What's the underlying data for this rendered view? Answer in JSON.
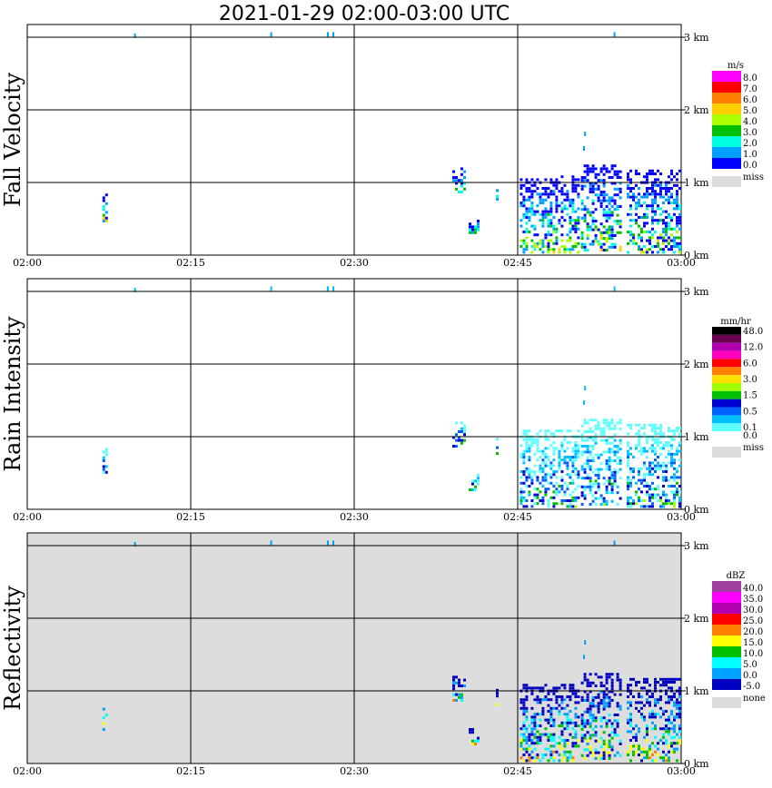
{
  "title": "2021-01-29   02:00-03:00 UTC",
  "chart_data": [
    {
      "type": "heatmap",
      "panel_label": "Fall Velocity",
      "x_tick_labels": [
        "02:00",
        "02:15",
        "02:30",
        "02:45",
        "03:00"
      ],
      "y_tick_labels": [
        "0 km",
        "1 km",
        "2 km",
        "3 km"
      ],
      "ylim_km": [
        0,
        3.2
      ],
      "xlim_min": [
        0,
        60
      ],
      "grid": true,
      "background": "#ffffff",
      "legend": {
        "unit": "m/s",
        "entries": [
          {
            "label": "8.0",
            "color": "#ff00ff"
          },
          {
            "label": "7.0",
            "color": "#ff0000"
          },
          {
            "label": "6.0",
            "color": "#ff8000"
          },
          {
            "label": "5.0",
            "color": "#ffd000"
          },
          {
            "label": "4.0",
            "color": "#aaff00"
          },
          {
            "label": "3.0",
            "color": "#00c000"
          },
          {
            "label": "2.0",
            "color": "#00ffe0"
          },
          {
            "label": "1.0",
            "color": "#00a0ff"
          },
          {
            "label": "0.0",
            "color": "#0000ff"
          }
        ],
        "missing": {
          "label": "miss",
          "color": "#dddddd"
        }
      }
    },
    {
      "type": "heatmap",
      "panel_label": "Rain Intensity",
      "x_tick_labels": [
        "02:00",
        "02:15",
        "02:30",
        "02:45",
        "03:00"
      ],
      "y_tick_labels": [
        "0 km",
        "1 km",
        "2 km",
        "3 km"
      ],
      "ylim_km": [
        0,
        3.2
      ],
      "xlim_min": [
        0,
        60
      ],
      "grid": true,
      "background": "#ffffff",
      "legend": {
        "unit": "mm/hr",
        "entries": [
          {
            "label": "48.0",
            "color": "#000000"
          },
          {
            "label": "",
            "color": "#6a0050"
          },
          {
            "label": "12.0",
            "color": "#b000b0"
          },
          {
            "label": "",
            "color": "#ff00c0"
          },
          {
            "label": "6.0",
            "color": "#ff0000"
          },
          {
            "label": "",
            "color": "#ff8000"
          },
          {
            "label": "3.0",
            "color": "#ffe000"
          },
          {
            "label": "",
            "color": "#a0ff00"
          },
          {
            "label": "1.5",
            "color": "#00c000"
          },
          {
            "label": "",
            "color": "#0000d0"
          },
          {
            "label": "0.5",
            "color": "#0060ff"
          },
          {
            "label": "",
            "color": "#00c0ff"
          },
          {
            "label": "0.1",
            "color": "#60ffff"
          },
          {
            "label": "0.0",
            "color": "#ffffff"
          }
        ],
        "missing": {
          "label": "miss",
          "color": "#dddddd"
        }
      }
    },
    {
      "type": "heatmap",
      "panel_label": "Reflectivity",
      "x_tick_labels": [
        "02:00",
        "02:15",
        "02:30",
        "02:45",
        "03:00"
      ],
      "y_tick_labels": [
        "0 km",
        "1 km",
        "2 km",
        "3 km"
      ],
      "ylim_km": [
        0,
        3.2
      ],
      "xlim_min": [
        0,
        60
      ],
      "grid": true,
      "background": "#dddddd",
      "legend": {
        "unit": "dBZ",
        "entries": [
          {
            "label": "40.0",
            "color": "#a040a0"
          },
          {
            "label": "35.0",
            "color": "#ff00ff"
          },
          {
            "label": "30.0",
            "color": "#b000b0"
          },
          {
            "label": "25.0",
            "color": "#ff0000"
          },
          {
            "label": "20.0",
            "color": "#ff8000"
          },
          {
            "label": "15.0",
            "color": "#ffff00"
          },
          {
            "label": "10.0",
            "color": "#00c000"
          },
          {
            "label": "5.0",
            "color": "#00ffff"
          },
          {
            "label": "0.0",
            "color": "#00a0ff"
          },
          {
            "label": "-5.0",
            "color": "#0000c0"
          }
        ],
        "missing": {
          "label": "none",
          "color": "#dddddd"
        }
      }
    }
  ]
}
